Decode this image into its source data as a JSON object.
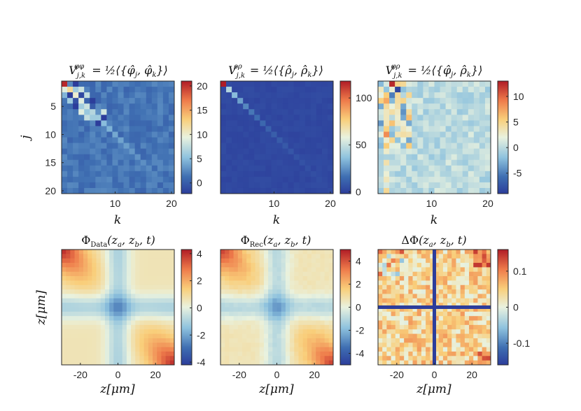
{
  "chart_data": [
    {
      "type": "heatmap",
      "title": "V^{φφ}_{j,k} = ½⟨{φ̂_j, φ̂_k}⟩",
      "xlabel": "k",
      "ylabel": "j",
      "x_ticks": [
        "10",
        "20"
      ],
      "y_ticks": [
        "5",
        "10",
        "15",
        "20"
      ],
      "size": 20,
      "diagonal": [
        20.5,
        12,
        10,
        9,
        8,
        7,
        6,
        5,
        4.5,
        4,
        3.8,
        3.5,
        3.2,
        3,
        2.8,
        2.6,
        2.4,
        2.2,
        2,
        1.8
      ],
      "offdiag_base": 1.5,
      "colorbar": {
        "min": -2.2,
        "max": 21,
        "ticks": [
          "20",
          "15",
          "10",
          "5",
          "0"
        ],
        "tick_values": [
          20,
          15,
          10,
          5,
          0
        ]
      }
    },
    {
      "type": "heatmap",
      "title": "V^{ρρ}_{j,k} = ½⟨{ρ̂_j, ρ̂_k}⟩",
      "xlabel": "k",
      "ylabel": "",
      "x_ticks": [
        "10",
        "20"
      ],
      "y_ticks": [],
      "size": 20,
      "diagonal": [
        118,
        45,
        35,
        28,
        22,
        18,
        15,
        13,
        11,
        10,
        9,
        8,
        7,
        6,
        5.5,
        5,
        4.5,
        4,
        3.5,
        3
      ],
      "offdiag_base": 2,
      "colorbar": {
        "min": -2,
        "max": 118,
        "ticks": [
          "100",
          "50",
          "0"
        ],
        "tick_values": [
          100,
          50,
          0
        ]
      }
    },
    {
      "type": "heatmap",
      "title": "V^{φρ}_{j,k} = ½⟨{φ̂_j, ρ̂_k}⟩",
      "xlabel": "k",
      "ylabel": "",
      "x_ticks": [
        "10",
        "20"
      ],
      "y_ticks": [],
      "size": 20,
      "colorbar": {
        "min": -9,
        "max": 13,
        "ticks": [
          "10",
          "5",
          "0",
          "-5"
        ],
        "tick_values": [
          10,
          5,
          0,
          -5
        ]
      }
    },
    {
      "type": "heatmap",
      "title": "Φ_Data(z_a, z_b, t)",
      "xlabel": "z[μm]",
      "ylabel": "z[μm]",
      "x_ticks": [
        "-20",
        "0",
        "20"
      ],
      "xlim": [
        -30,
        30
      ],
      "grid_n": 26,
      "colorbar": {
        "min": -4.2,
        "max": 4.3,
        "ticks": [
          "4",
          "2",
          "0",
          "-2",
          "-4"
        ],
        "tick_values": [
          4,
          2,
          0,
          -2,
          -4
        ]
      }
    },
    {
      "type": "heatmap",
      "title": "Φ_Rec(z_a, z_b, t)",
      "xlabel": "z[μm]",
      "ylabel": "",
      "x_ticks": [
        "-20",
        "0",
        "20"
      ],
      "xlim": [
        -30,
        30
      ],
      "grid_n": 26,
      "colorbar": {
        "min": -5,
        "max": 5,
        "ticks": [
          "4",
          "2",
          "0",
          "-2",
          "-4"
        ],
        "tick_values": [
          4,
          2,
          0,
          -2,
          -4
        ]
      }
    },
    {
      "type": "heatmap",
      "title": "ΔΦ(z_a, z_b, t)",
      "xlabel": "z[μm]",
      "ylabel": "",
      "x_ticks": [
        "-20",
        "0",
        "20"
      ],
      "xlim": [
        -30,
        30
      ],
      "grid_n": 26,
      "colorbar": {
        "min": -0.16,
        "max": 0.16,
        "ticks": [
          "0.1",
          "0",
          "-0.1"
        ],
        "tick_values": [
          0.1,
          0,
          -0.1
        ]
      }
    }
  ]
}
